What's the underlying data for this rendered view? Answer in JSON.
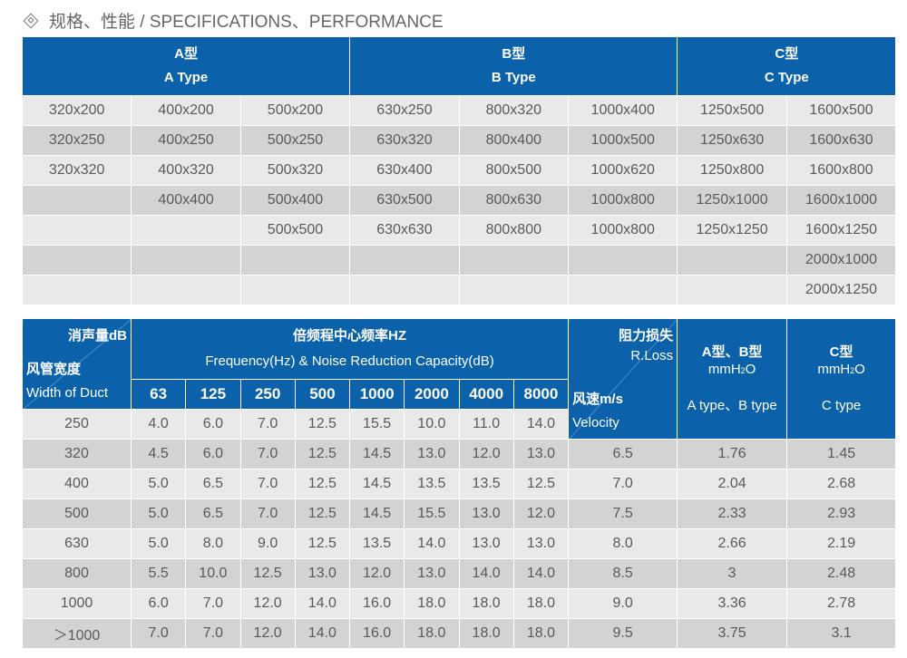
{
  "title": {
    "icon": "diamond-icon",
    "text": "规格、性能 / SPECIFICATIONS、PERFORMANCE"
  },
  "spec_table": {
    "headers": [
      {
        "cn": "A型",
        "en": "A Type"
      },
      {
        "cn": "B型",
        "en": "B Type"
      },
      {
        "cn": "C型",
        "en": "C Type"
      }
    ],
    "rows": [
      [
        "320x200",
        "400x200",
        "500x200",
        "630x250",
        "800x320",
        "1000x400",
        "1250x500",
        "1600x500"
      ],
      [
        "320x250",
        "400x250",
        "500x250",
        "630x320",
        "800x400",
        "1000x500",
        "1250x630",
        "1600x630"
      ],
      [
        "320x320",
        "400x320",
        "500x320",
        "630x400",
        "800x500",
        "1000x620",
        "1250x800",
        "1600x800"
      ],
      [
        "",
        "400x400",
        "500x400",
        "630x500",
        "800x630",
        "1000x800",
        "1250x1000",
        "1600x1000"
      ],
      [
        "",
        "",
        "500x500",
        "630x630",
        "800x800",
        "1000x800",
        "1250x1250",
        "1600x1250"
      ],
      [
        "",
        "",
        "",
        "",
        "",
        "",
        "",
        "2000x1000"
      ],
      [
        "",
        "",
        "",
        "",
        "",
        "",
        "",
        "2000x1250"
      ]
    ]
  },
  "perf_table": {
    "corner": {
      "top": "消声量dB",
      "bottom_cn": "风管宽度",
      "bottom_en": "Width of Duct"
    },
    "freq_title_cn": "倍频程中心频率HZ",
    "freq_title_en": "Frequency(Hz) & Noise Reduction Capacity(dB)",
    "frequencies": [
      "63",
      "125",
      "250",
      "500",
      "1000",
      "2000",
      "4000",
      "8000"
    ],
    "velocity_corner": {
      "top_cn": "阻力损失",
      "top_en": "R.Loss",
      "bottom_cn": "风速m/s",
      "bottom_en": "Velocity"
    },
    "ab_header": {
      "cn": "A型、B型",
      "unit_main": "mmH",
      "unit_sub": "2",
      "unit_end": "O",
      "en": "A type、B type"
    },
    "c_header": {
      "cn": "C型",
      "unit_main": "mmH",
      "unit_sub": "2",
      "unit_end": "O",
      "en": "C type"
    },
    "rows": [
      {
        "width": "250",
        "values": [
          "4.0",
          "6.0",
          "7.0",
          "12.5",
          "15.5",
          "10.0",
          "11.0",
          "14.0"
        ]
      },
      {
        "width": "320",
        "values": [
          "4.5",
          "6.0",
          "7.0",
          "12.5",
          "14.5",
          "13.0",
          "12.0",
          "13.0"
        ],
        "velocity": "6.5",
        "ab": "1.76",
        "c": "1.45"
      },
      {
        "width": "400",
        "values": [
          "5.0",
          "6.5",
          "7.0",
          "12.5",
          "14.5",
          "13.5",
          "13.5",
          "12.5"
        ],
        "velocity": "7.0",
        "ab": "2.04",
        "c": "2.68"
      },
      {
        "width": "500",
        "values": [
          "5.0",
          "6.5",
          "7.0",
          "12.5",
          "14.5",
          "15.5",
          "13.0",
          "12.0"
        ],
        "velocity": "7.5",
        "ab": "2.33",
        "c": "2.93"
      },
      {
        "width": "630",
        "values": [
          "5.0",
          "8.0",
          "9.0",
          "12.5",
          "13.5",
          "14.0",
          "13.0",
          "13.0"
        ],
        "velocity": "8.0",
        "ab": "2.66",
        "c": "2.19"
      },
      {
        "width": "800",
        "values": [
          "5.5",
          "10.0",
          "12.5",
          "13.0",
          "12.0",
          "13.0",
          "14.0",
          "14.0"
        ],
        "velocity": "8.5",
        "ab": "3",
        "c": "2.48"
      },
      {
        "width": "1000",
        "values": [
          "6.0",
          "7.0",
          "12.0",
          "14.0",
          "16.0",
          "18.0",
          "18.0",
          "18.0"
        ],
        "velocity": "9.0",
        "ab": "3.36",
        "c": "2.78"
      },
      {
        "width": "＞1000",
        "values": [
          "7.0",
          "7.0",
          "12.0",
          "14.0",
          "16.0",
          "18.0",
          "18.0",
          "18.0"
        ],
        "velocity": "9.5",
        "ab": "3.75",
        "c": "3.1"
      }
    ]
  }
}
